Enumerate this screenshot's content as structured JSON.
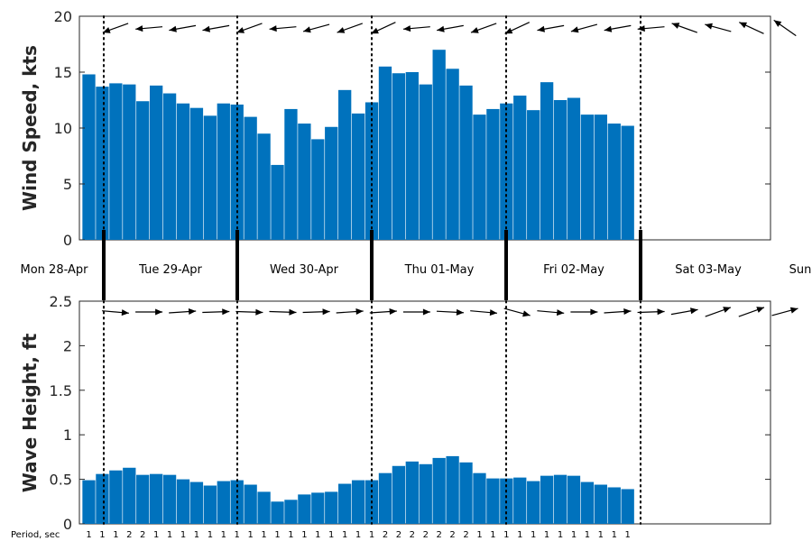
{
  "chart_data": [
    {
      "type": "bar",
      "ylabel": "Wind Speed, kts",
      "ylim": [
        0,
        20
      ],
      "yticks": [
        0,
        5,
        10,
        15,
        20
      ],
      "color": "#0072BD",
      "values": [
        14.8,
        13.7,
        14.0,
        13.9,
        12.4,
        13.8,
        13.1,
        12.2,
        11.8,
        11.1,
        12.2,
        12.1,
        11.0,
        9.5,
        6.7,
        11.7,
        10.4,
        9.0,
        10.1,
        13.4,
        11.3,
        12.3,
        15.5,
        14.9,
        15.0,
        13.9,
        17.0,
        15.3,
        13.8,
        11.2,
        11.7,
        12.2,
        12.9,
        11.6,
        14.1,
        12.5,
        12.7,
        11.2,
        11.2,
        10.4,
        10.2
      ],
      "direction_arrows": "wind direction arrows above bars, pointing mostly left (westward)"
    },
    {
      "type": "bar",
      "ylabel": "Wave Height, ft",
      "ylim": [
        0,
        2.5
      ],
      "yticks": [
        "0",
        "0.5",
        "1",
        "1.5",
        "2",
        "2.5"
      ],
      "color": "#0072BD",
      "values": [
        0.49,
        0.56,
        0.6,
        0.63,
        0.55,
        0.56,
        0.55,
        0.5,
        0.47,
        0.43,
        0.48,
        0.49,
        0.44,
        0.36,
        0.25,
        0.27,
        0.33,
        0.35,
        0.36,
        0.45,
        0.49,
        0.49,
        0.57,
        0.65,
        0.7,
        0.67,
        0.74,
        0.76,
        0.69,
        0.57,
        0.51,
        0.51,
        0.52,
        0.48,
        0.54,
        0.55,
        0.54,
        0.47,
        0.44,
        0.41,
        0.39
      ],
      "period_label": "Period, sec",
      "periods": [
        "1",
        "1",
        "1",
        "2",
        "2",
        "1",
        "1",
        "1",
        "1",
        "1",
        "1",
        "1",
        "1",
        "1",
        "1",
        "1",
        "1",
        "1",
        "1",
        "1",
        "1",
        "1",
        "2",
        "2",
        "2",
        "2",
        "2",
        "2",
        "2",
        "1",
        "1",
        "1",
        "1",
        "1",
        "1",
        "1",
        "1",
        "1",
        "1",
        "1",
        "1"
      ],
      "direction_arrows": "wave direction arrows above bars, pointing right (eastward)"
    }
  ],
  "days": [
    "Mon 28-Apr",
    "Tue 29-Apr",
    "Wed 30-Apr",
    "Thu 01-May",
    "Fri 02-May",
    "Sat 03-May",
    "Sun"
  ],
  "wind_arrow_angles": [
    200,
    190,
    185,
    190,
    190,
    195,
    190,
    195,
    200,
    190,
    185,
    190,
    195,
    195,
    200,
    210,
    205,
    190,
    185,
    190,
    190,
    195,
    200,
    210,
    205,
    195,
    190,
    190,
    195,
    185,
    190,
    195,
    185,
    170,
    160,
    165,
    165,
    160,
    155,
    150,
    145
  ],
  "wave_arrow_angles": [
    -5,
    0,
    0,
    2,
    4,
    4,
    2,
    0,
    -2,
    -3,
    -2,
    0,
    2,
    3,
    4,
    4,
    4,
    2,
    0,
    -2,
    -3,
    -2,
    -5,
    -10,
    -15,
    -10,
    -5,
    -3,
    0,
    2,
    4,
    4,
    2,
    5,
    10,
    15,
    20,
    22,
    20,
    18,
    15
  ]
}
